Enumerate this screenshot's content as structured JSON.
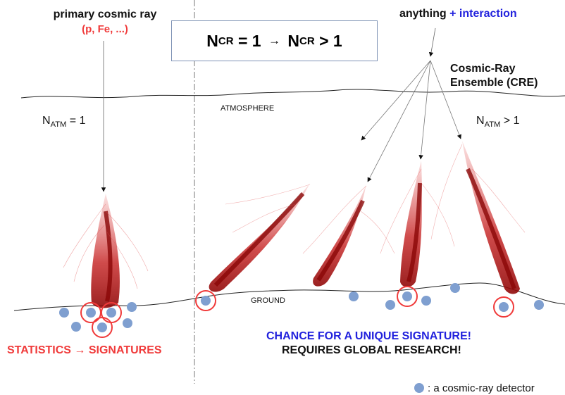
{
  "primary": {
    "title": "primary cosmic ray",
    "particles": "(p, Fe, ...)"
  },
  "formula": {
    "n": "N",
    "sub": "CR",
    "eq1": " = 1 ",
    "arrow": "→",
    "eq2": " > 1"
  },
  "top_right": {
    "anything": "anything",
    "interaction": "+ interaction"
  },
  "cre": {
    "line1": "Cosmic-Ray",
    "line2": "Ensemble (CRE)"
  },
  "atmosphere_label": "ATMOSPHERE",
  "ground_label": "GROUND",
  "n_atm_left": {
    "n": "N",
    "sub": "ATM",
    "rest": " = 1"
  },
  "n_atm_right": {
    "n": "N",
    "sub": "ATM",
    "rest": " > 1"
  },
  "stats": "STATISTICS → SIGNATURES",
  "chance": "CHANCE FOR A UNIQUE SIGNATURE!",
  "global": "REQUIRES GLOBAL RESEARCH!",
  "legend": ": a cosmic-ray detector",
  "colors": {
    "red": "#f03a3a",
    "blue": "#2222dd",
    "detector": "#7f9fd0",
    "shower": "#c01010"
  }
}
